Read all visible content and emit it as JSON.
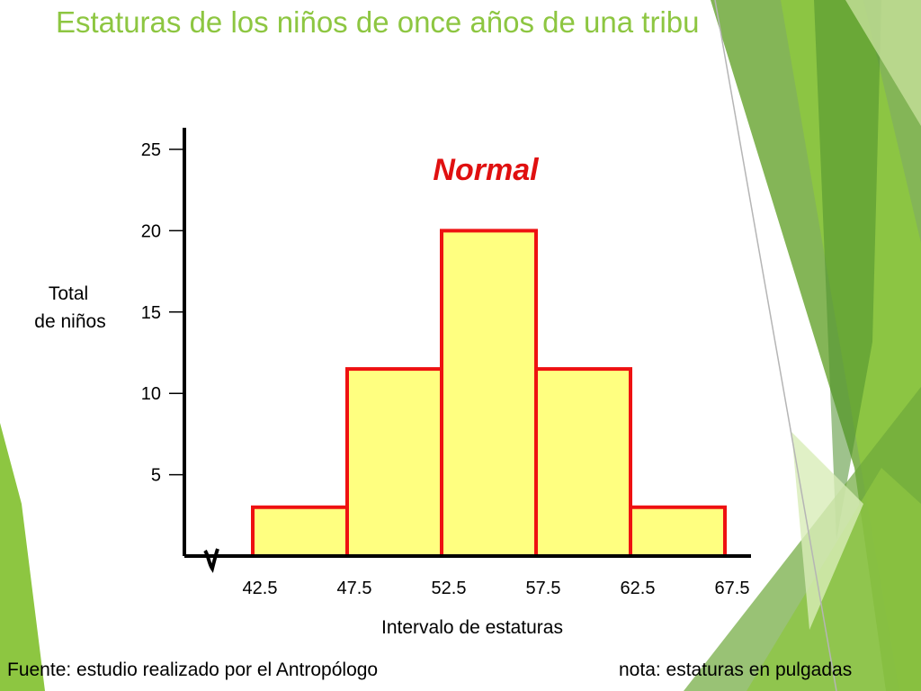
{
  "slide": {
    "title": "Estaturas de los niños de once años de una tribu",
    "source": "Fuente: estudio realizado por el Antropólogo",
    "note": "nota: estaturas en pulgadas",
    "accent_colors": [
      "#8dc641",
      "#6ea83a",
      "#4f8f2e",
      "#c5e09a"
    ]
  },
  "chart_data": {
    "type": "bar",
    "title": "Normal",
    "xlabel": "Intervalo de estaturas",
    "ylabel": "Total de niños",
    "bin_edges": [
      42.5,
      47.5,
      52.5,
      57.5,
      62.5,
      67.5
    ],
    "x_tick_labels": [
      "42.5",
      "47.5",
      "52.5",
      "57.5",
      "62.5",
      "67.5"
    ],
    "values": [
      3,
      11.5,
      20,
      11.5,
      3
    ],
    "y_ticks": [
      5,
      10,
      15,
      20,
      25
    ],
    "ylim": [
      0,
      25
    ],
    "bar_fill": "#ffff80",
    "bar_stroke": "#ee1111",
    "title_color": "#e01010"
  }
}
